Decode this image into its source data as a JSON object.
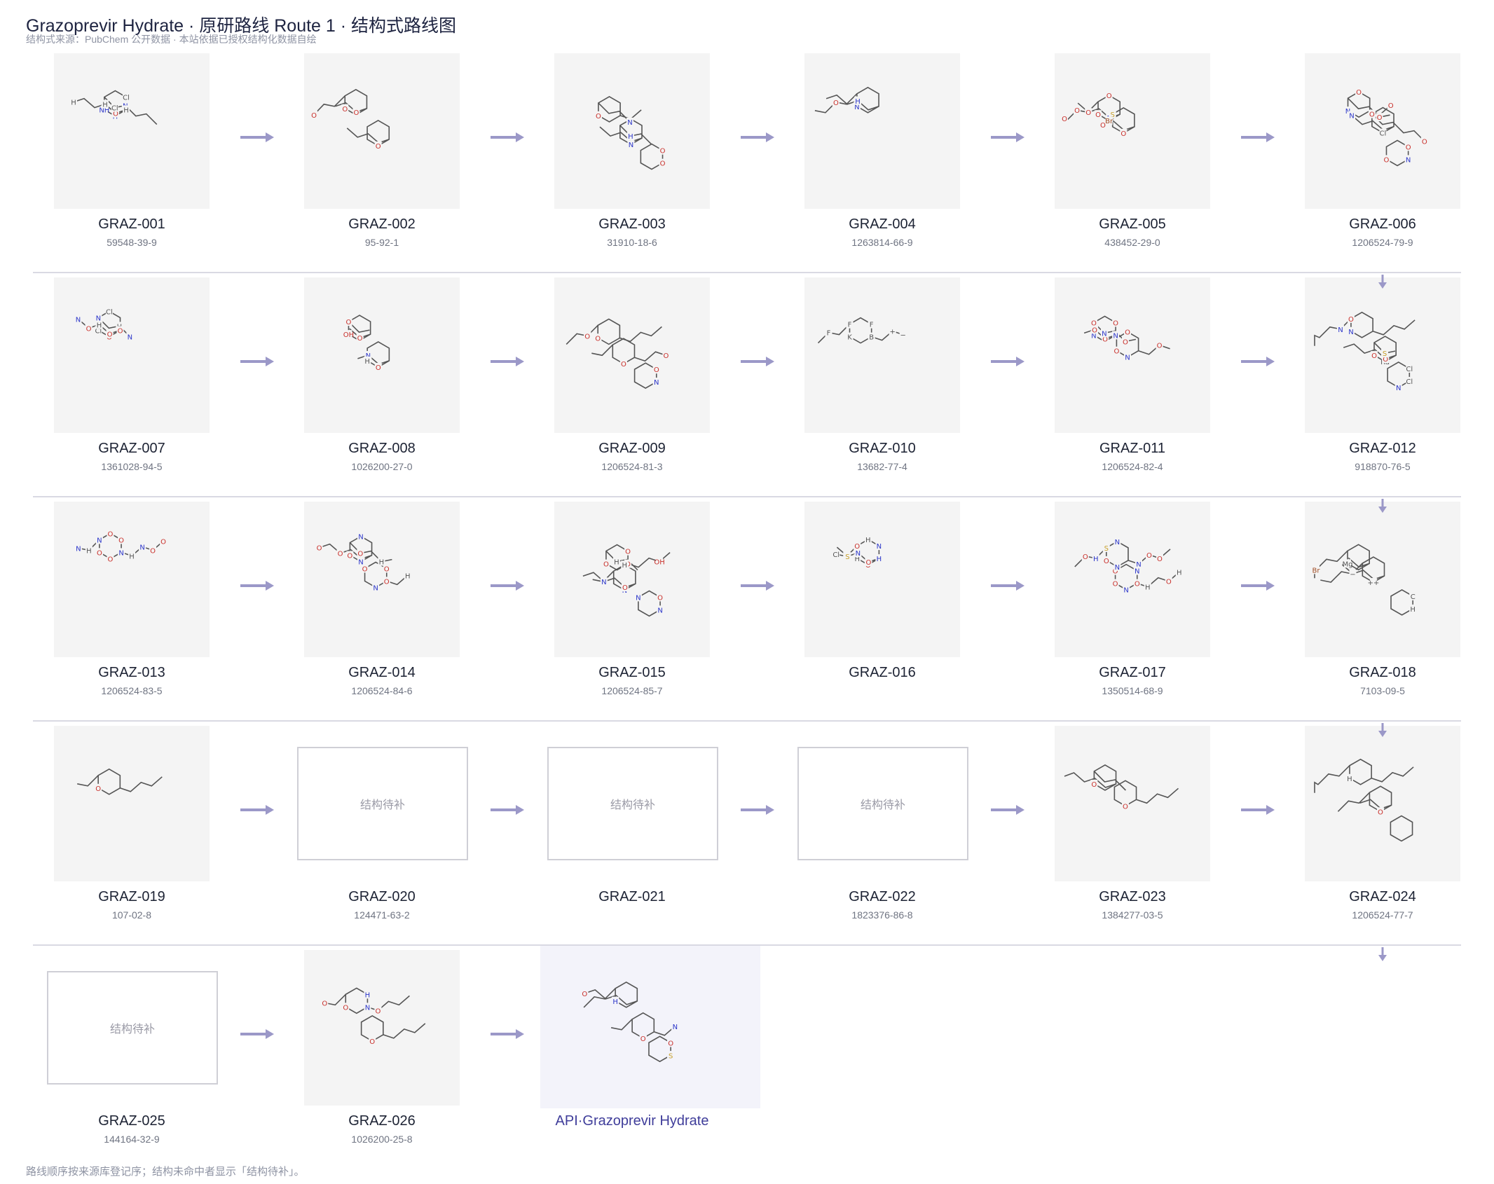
{
  "title": "Grazoprevir Hydrate · 原研路线 Route 1 · 结构式路线图",
  "subtitle": "结构式来源：PubChem 公开数据 · 本站依据已授权结构化数据自绘",
  "footer": "路线顺序按来源库登记序；结构未命中者显示「结构待补」。",
  "placeholder_text": "结构待补",
  "colors": {
    "arrow": "#9b98c8",
    "card": "#f4f4f4",
    "api_card": "#f3f3fa",
    "nitrogen": "#2b35c9",
    "oxygen": "#c9302b",
    "sulfur": "#c7a02b"
  },
  "nodes": [
    {
      "id": "GRAZ-001",
      "cas": "59548-39-9",
      "structure": true
    },
    {
      "id": "GRAZ-002",
      "cas": "95-92-1",
      "structure": true
    },
    {
      "id": "GRAZ-003",
      "cas": "31910-18-6",
      "structure": true
    },
    {
      "id": "GRAZ-004",
      "cas": "1263814-66-9",
      "structure": true
    },
    {
      "id": "GRAZ-005",
      "cas": "438452-29-0",
      "structure": true
    },
    {
      "id": "GRAZ-006",
      "cas": "1206524-79-9",
      "structure": true
    },
    {
      "id": "GRAZ-007",
      "cas": "1361028-94-5",
      "structure": true
    },
    {
      "id": "GRAZ-008",
      "cas": "1026200-27-0",
      "structure": true
    },
    {
      "id": "GRAZ-009",
      "cas": "1206524-81-3",
      "structure": true
    },
    {
      "id": "GRAZ-010",
      "cas": "13682-77-4",
      "structure": true
    },
    {
      "id": "GRAZ-011",
      "cas": "1206524-82-4",
      "structure": true
    },
    {
      "id": "GRAZ-012",
      "cas": "918870-76-5",
      "structure": true
    },
    {
      "id": "GRAZ-013",
      "cas": "1206524-83-5",
      "structure": true
    },
    {
      "id": "GRAZ-014",
      "cas": "1206524-84-6",
      "structure": true
    },
    {
      "id": "GRAZ-015",
      "cas": "1206524-85-7",
      "structure": true
    },
    {
      "id": "GRAZ-016",
      "cas": "",
      "structure": true
    },
    {
      "id": "GRAZ-017",
      "cas": "1350514-68-9",
      "structure": true
    },
    {
      "id": "GRAZ-018",
      "cas": "7103-09-5",
      "structure": true
    },
    {
      "id": "GRAZ-019",
      "cas": "107-02-8",
      "structure": true
    },
    {
      "id": "GRAZ-020",
      "cas": "124471-63-2",
      "structure": false
    },
    {
      "id": "GRAZ-021",
      "cas": "",
      "structure": false
    },
    {
      "id": "GRAZ-022",
      "cas": "1823376-86-8",
      "structure": false
    },
    {
      "id": "GRAZ-023",
      "cas": "1384277-03-5",
      "structure": true
    },
    {
      "id": "GRAZ-024",
      "cas": "1206524-77-7",
      "structure": true
    },
    {
      "id": "GRAZ-025",
      "cas": "144164-32-9",
      "structure": false
    },
    {
      "id": "GRAZ-026",
      "cas": "1026200-25-8",
      "structure": true
    },
    {
      "id": "API·Grazoprevir Hydrate",
      "cas": "",
      "structure": true,
      "api": true
    }
  ],
  "atom_labels": {
    "GRAZ-001": [
      "NH",
      "H",
      "N",
      "H",
      "O",
      "Cl",
      "H",
      "Cl",
      "H"
    ],
    "GRAZ-002": [
      "O",
      "O",
      "O",
      "O"
    ],
    "GRAZ-003": [
      "H",
      "N",
      "O",
      "O",
      "N",
      "H",
      "O"
    ],
    "GRAZ-004": [
      "N",
      "Cl",
      "O",
      "N",
      "H",
      "O"
    ],
    "GRAZ-005": [
      "O",
      "O",
      "N",
      "O",
      "O",
      "O",
      "S",
      "O",
      "O",
      "Br"
    ],
    "GRAZ-006": [
      "N",
      "Cl",
      "N",
      "O",
      "O",
      "N",
      "O",
      "O",
      "O",
      "O",
      "O"
    ],
    "GRAZ-007": [
      "Cl",
      "H",
      "N",
      "Cl",
      "N",
      "O",
      "O",
      "H",
      "N",
      "O",
      "O"
    ],
    "GRAZ-008": [
      "OH",
      "O",
      "O",
      "N",
      "O",
      "H"
    ],
    "GRAZ-009": [
      "N",
      "Cl",
      "N",
      "O",
      "O",
      "O",
      "N",
      "O",
      "N",
      "O",
      "O",
      "O",
      "O"
    ],
    "GRAZ-010": [
      "K",
      "+",
      "B",
      "F",
      "F",
      "F",
      "−"
    ],
    "GRAZ-011": [
      "N",
      "N",
      "O",
      "O",
      "N",
      "O",
      "O",
      "N",
      "O",
      "O",
      "O",
      "O"
    ],
    "GRAZ-012": [
      "N",
      "Ru",
      "Cl",
      "Cl",
      "N",
      "O",
      "S",
      "O",
      "O",
      "N"
    ],
    "GRAZ-013": [
      "O",
      "N",
      "N",
      "O",
      "H",
      "N",
      "O",
      "O",
      "H",
      "N",
      "O",
      "O",
      "O"
    ],
    "GRAZ-014": [
      "O",
      "N",
      "N",
      "O",
      "H",
      "N",
      "O",
      "O",
      "H",
      "N",
      "O",
      "O",
      "O"
    ],
    "GRAZ-015": [
      "O",
      "N",
      "N",
      "O",
      "H",
      "N",
      "O",
      "O",
      "H",
      "N",
      "OH",
      "O"
    ],
    "GRAZ-016": [
      "H",
      "N",
      "H",
      "N",
      "H",
      "O",
      "S",
      "O",
      "O",
      "Cl",
      "H"
    ],
    "GRAZ-017": [
      "O",
      "N",
      "N",
      "O",
      "H",
      "N",
      "O",
      "O",
      "H",
      "N",
      "O",
      "N",
      "H",
      "O",
      "S",
      "O",
      "O"
    ],
    "GRAZ-018": [
      "Mg",
      "++",
      "H",
      "C",
      "Br",
      "−"
    ],
    "GRAZ-019": [
      "O"
    ],
    "GRAZ-023": [
      "O",
      "O"
    ],
    "GRAZ-024": [
      "H",
      "O"
    ],
    "GRAZ-026": [
      "O",
      "O",
      "O",
      "O",
      "N",
      "H"
    ],
    "API·Grazoprevir Hydrate": [
      "O",
      "N",
      "N",
      "O",
      "H",
      "N",
      "O",
      "O",
      "H",
      "N",
      "O",
      "N",
      "H",
      "O",
      "S",
      "O",
      "O"
    ]
  }
}
